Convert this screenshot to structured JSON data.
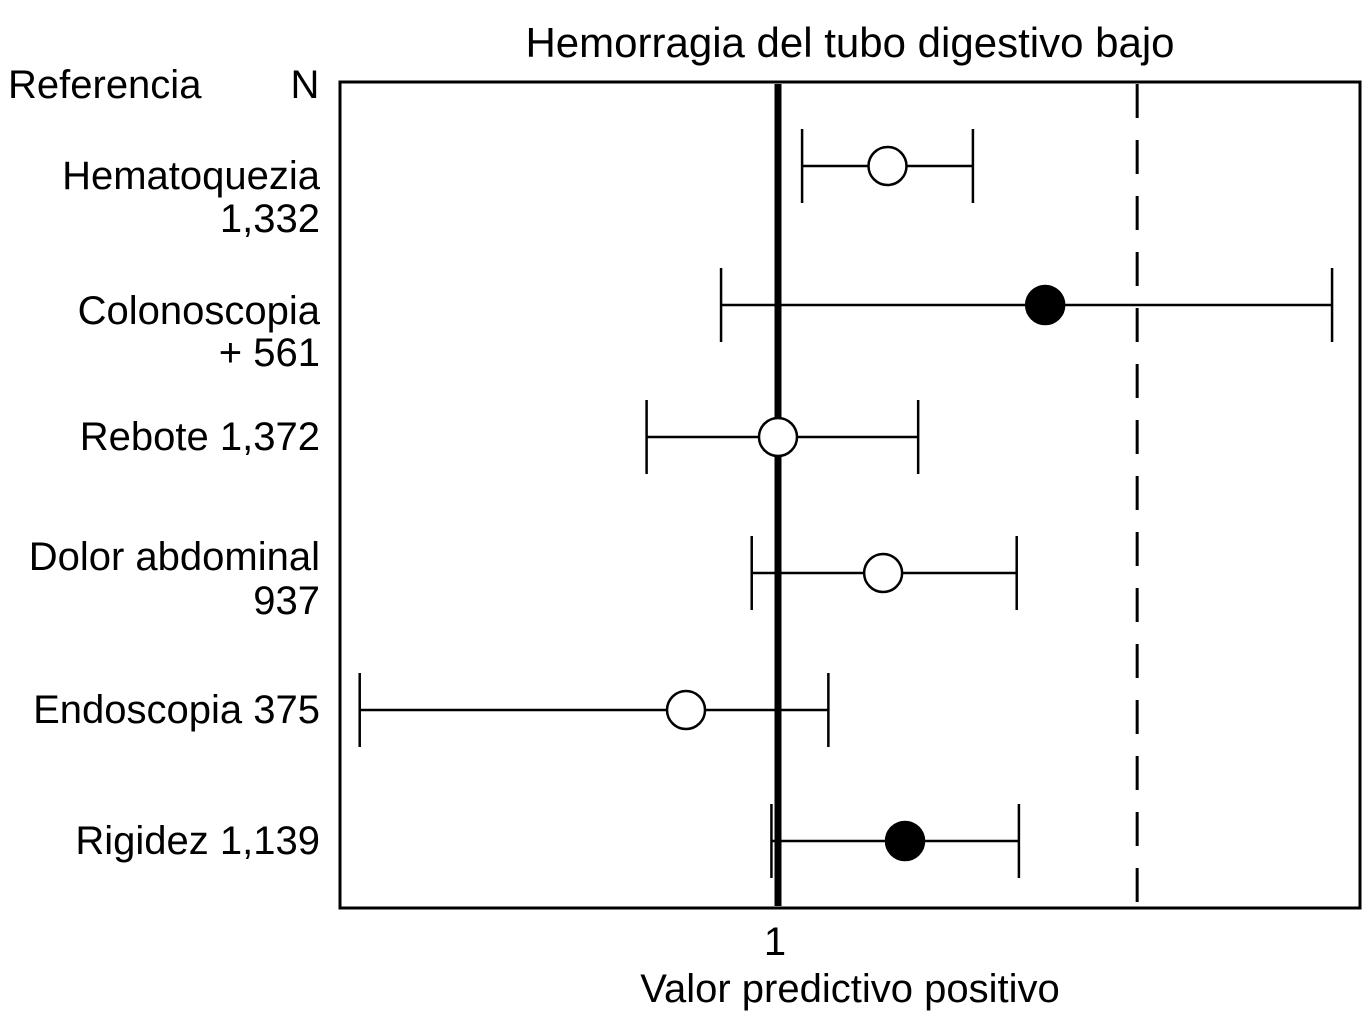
{
  "chart_data": {
    "type": "forest",
    "title": "Hemorragia del tubo digestivo bajo",
    "xlabel": "Valor predictivo positivo",
    "header_left": "Referencia",
    "header_right": "N",
    "xlim": [
      0,
      2.33
    ],
    "x_ticks": [
      {
        "value": 1,
        "label": "1"
      }
    ],
    "reference_line": 1,
    "dashed_line": 1.82,
    "colors": {
      "ink": "#000000",
      "background": "#ffffff"
    },
    "rows": [
      {
        "label_lines": [
          "Hematoquezia",
          "1,332"
        ],
        "estimate": 1.25,
        "lower": 1.055,
        "upper": 1.445,
        "filled": false
      },
      {
        "label_lines": [
          "Colonoscopia",
          "+ 561"
        ],
        "estimate": 1.61,
        "lower": 0.87,
        "upper": 2.265,
        "filled": true
      },
      {
        "label_lines": [
          "Rebote 1,372"
        ],
        "estimate": 1.0,
        "lower": 0.7,
        "upper": 1.32,
        "filled": false
      },
      {
        "label_lines": [
          "Dolor abdominal",
          "937"
        ],
        "estimate": 1.24,
        "lower": 0.94,
        "upper": 1.545,
        "filled": false
      },
      {
        "label_lines": [
          "Endoscopia 375"
        ],
        "estimate": 0.79,
        "lower": 0.045,
        "upper": 1.115,
        "filled": false
      },
      {
        "label_lines": [
          "Rigidez 1,139"
        ],
        "estimate": 1.29,
        "lower": 0.985,
        "upper": 1.55,
        "filled": true
      }
    ]
  }
}
